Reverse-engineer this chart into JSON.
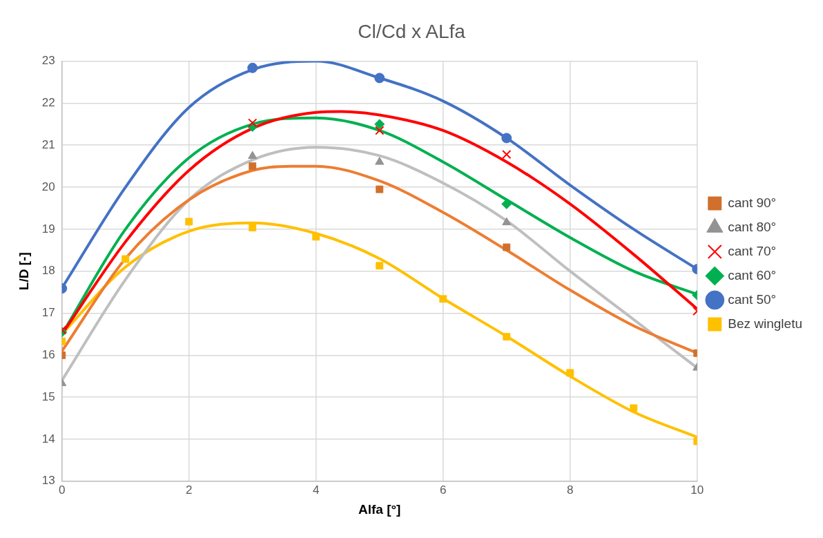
{
  "chart_data": {
    "type": "scatter",
    "title": "Cl/Cd x ALfa",
    "xlabel": "Alfa [°]",
    "ylabel": "L/D [-]",
    "xlim": [
      0,
      10
    ],
    "xticks": [
      0,
      2,
      4,
      6,
      8,
      10
    ],
    "ylim": [
      13,
      23
    ],
    "yticks": [
      13,
      14,
      15,
      16,
      17,
      18,
      19,
      20,
      21,
      22,
      23
    ],
    "grid": true,
    "legend": "right",
    "series": [
      {
        "type": "line",
        "marker": "none",
        "color": "#ed7d31",
        "x": [
          0,
          1,
          2,
          3,
          3.6,
          4,
          5,
          6,
          7,
          8,
          9,
          10
        ],
        "values": [
          16.1,
          18.3,
          19.7,
          20.4,
          20.5,
          20.5,
          20.15,
          19.4,
          18.5,
          17.55,
          16.7,
          16.05
        ]
      },
      {
        "type": "line",
        "marker": "none",
        "color": "#bfbfbf",
        "x": [
          0,
          1,
          2,
          3,
          4,
          5,
          6,
          7,
          8,
          9,
          10
        ],
        "values": [
          15.4,
          17.8,
          19.7,
          20.65,
          20.95,
          20.75,
          20.1,
          19.2,
          18.0,
          16.85,
          15.7
        ]
      },
      {
        "type": "line",
        "marker": "none",
        "color": "#ff0000",
        "x": [
          0,
          1,
          2,
          3,
          4,
          4.4,
          5,
          6,
          7,
          8,
          9,
          10
        ],
        "values": [
          16.5,
          18.7,
          20.4,
          21.4,
          21.78,
          21.8,
          21.72,
          21.35,
          20.6,
          19.6,
          18.4,
          17.1
        ]
      },
      {
        "type": "line",
        "marker": "none",
        "color": "#00b050",
        "x": [
          0,
          1,
          2,
          3,
          4,
          5,
          6,
          7,
          8,
          9,
          10
        ],
        "values": [
          16.5,
          19.0,
          20.7,
          21.5,
          21.65,
          21.35,
          20.6,
          19.7,
          18.8,
          18.0,
          17.45
        ]
      },
      {
        "type": "line",
        "marker": "none",
        "color": "#4472c4",
        "x": [
          0,
          1,
          2,
          3,
          4,
          5,
          6,
          7,
          8,
          9,
          10
        ],
        "values": [
          17.6,
          20.0,
          21.9,
          22.8,
          23.0,
          22.6,
          22.05,
          21.17,
          20.05,
          19.0,
          18.05
        ]
      },
      {
        "type": "line",
        "marker": "none",
        "color": "#ffc000",
        "x": [
          0,
          1,
          2,
          3,
          4,
          5,
          6,
          7,
          8,
          9,
          10
        ],
        "values": [
          16.5,
          18.1,
          18.95,
          19.15,
          18.9,
          18.3,
          17.35,
          16.45,
          15.5,
          14.65,
          14.05
        ]
      },
      {
        "name": "cant 90°",
        "marker": "square",
        "color": "#d0702c",
        "x": [
          0,
          3,
          5,
          7,
          10
        ],
        "values": [
          16.0,
          20.5,
          19.95,
          18.57,
          16.05
        ]
      },
      {
        "name": "cant 80°",
        "marker": "triangle",
        "color": "#939393",
        "x": [
          0,
          3,
          5,
          7,
          10
        ],
        "values": [
          15.33,
          20.74,
          20.6,
          19.16,
          15.7
        ]
      },
      {
        "name": "cant 70°",
        "marker": "cross",
        "color": "#ff0000",
        "x": [
          0,
          3,
          5,
          7,
          10
        ],
        "values": [
          16.6,
          21.53,
          21.35,
          20.78,
          17.05
        ]
      },
      {
        "name": "cant 60°",
        "marker": "diamond",
        "color": "#00b050",
        "x": [
          0,
          3,
          5,
          7,
          10
        ],
        "values": [
          16.55,
          21.44,
          21.5,
          19.6,
          17.43
        ]
      },
      {
        "name": "cant 50°",
        "marker": "circle",
        "color": "#4472c4",
        "x": [
          0,
          3,
          5,
          7,
          10
        ],
        "values": [
          17.59,
          22.84,
          22.6,
          21.17,
          18.05
        ]
      },
      {
        "name": "Bez wingletu",
        "marker": "square",
        "color": "#ffc000",
        "x": [
          0,
          1,
          2,
          3,
          4,
          5,
          6,
          7,
          8,
          9,
          10
        ],
        "values": [
          16.33,
          18.29,
          19.18,
          19.04,
          18.82,
          18.13,
          17.34,
          16.44,
          15.58,
          14.74,
          13.95
        ]
      }
    ]
  }
}
